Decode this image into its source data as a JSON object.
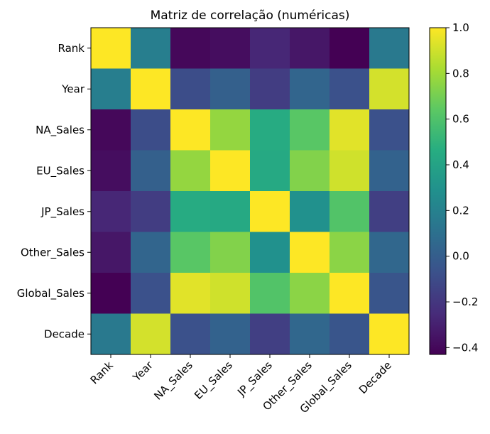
{
  "chart_data": {
    "type": "heatmap",
    "title": "Matriz de correlação (numéricas)",
    "rows": [
      "Rank",
      "Year",
      "NA_Sales",
      "EU_Sales",
      "JP_Sales",
      "Other_Sales",
      "Global_Sales",
      "Decade"
    ],
    "columns": [
      "Rank",
      "Year",
      "NA_Sales",
      "EU_Sales",
      "JP_Sales",
      "Other_Sales",
      "Global_Sales",
      "Decade"
    ],
    "values": [
      [
        1.0,
        0.18,
        -0.4,
        -0.38,
        -0.27,
        -0.34,
        -0.43,
        0.15
      ],
      [
        0.18,
        1.0,
        -0.09,
        0.01,
        -0.17,
        0.04,
        -0.07,
        0.91
      ],
      [
        -0.4,
        -0.09,
        1.0,
        0.77,
        0.45,
        0.63,
        0.94,
        -0.07
      ],
      [
        -0.38,
        0.01,
        0.77,
        1.0,
        0.44,
        0.73,
        0.9,
        0.02
      ],
      [
        -0.27,
        -0.17,
        0.45,
        0.44,
        1.0,
        0.29,
        0.61,
        -0.16
      ],
      [
        -0.34,
        0.04,
        0.63,
        0.73,
        0.29,
        1.0,
        0.75,
        0.05
      ],
      [
        -0.43,
        -0.07,
        0.94,
        0.9,
        0.61,
        0.75,
        1.0,
        -0.05
      ],
      [
        0.15,
        0.91,
        -0.07,
        0.02,
        -0.16,
        0.05,
        -0.05,
        1.0
      ]
    ],
    "colorbar": {
      "colormap": "viridis",
      "range": [
        -0.43,
        1.0
      ],
      "ticks": [
        -0.4,
        -0.2,
        0.0,
        0.2,
        0.4,
        0.6,
        0.8,
        1.0
      ],
      "tick_labels": [
        "−0.4",
        "−0.2",
        "0.0",
        "0.2",
        "0.4",
        "0.6",
        "0.8",
        "1.0"
      ]
    },
    "grid": false,
    "xtick_rotation_deg": 45
  }
}
